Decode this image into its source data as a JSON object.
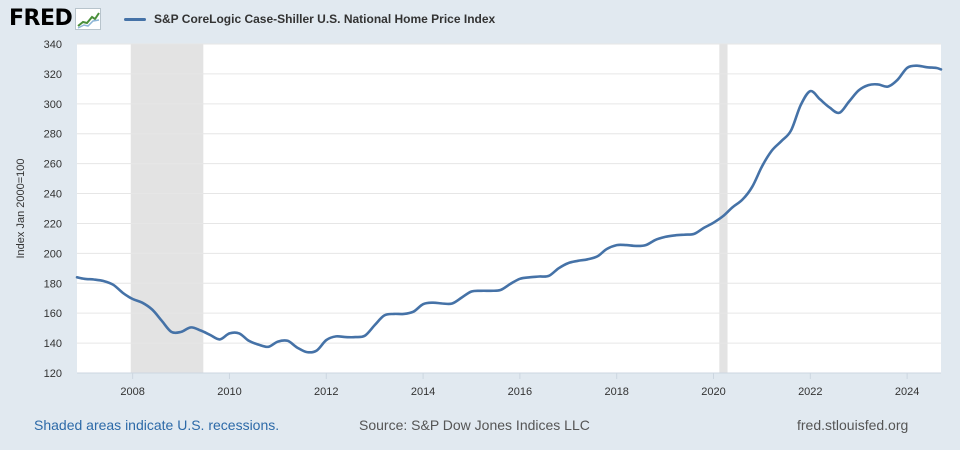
{
  "header": {
    "logo_text": "FRED",
    "legend_label": "S&P CoreLogic Case-Shiller U.S. National Home Price Index"
  },
  "footer": {
    "recession_note": "Shaded areas indicate U.S. recessions.",
    "source": "Source: S&P Dow Jones Indices LLC",
    "site": "fred.stlouisfed.org"
  },
  "colors": {
    "series": "#4572a7",
    "recession": "#e3e3e3",
    "background": "#e1e9f0",
    "plot": "#ffffff",
    "link": "#2d6aa8"
  },
  "chart_data": {
    "type": "line",
    "title": "",
    "xlabel": "",
    "ylabel": "Index Jan 2000=100",
    "xlim": [
      2006.85,
      2024.7
    ],
    "ylim": [
      120,
      340
    ],
    "y_ticks": [
      120,
      140,
      160,
      180,
      200,
      220,
      240,
      260,
      280,
      300,
      320,
      340
    ],
    "x_ticks": [
      2008,
      2010,
      2012,
      2014,
      2016,
      2018,
      2020,
      2022,
      2024
    ],
    "grid": "horizontal",
    "legend": "top-left",
    "recessions": [
      [
        2007.96,
        2009.46
      ],
      [
        2020.12,
        2020.29
      ]
    ],
    "series": [
      {
        "name": "S&P CoreLogic Case-Shiller U.S. National Home Price Index",
        "x": [
          2006.85,
          2007.0,
          2007.2,
          2007.4,
          2007.6,
          2007.8,
          2008.0,
          2008.2,
          2008.4,
          2008.6,
          2008.8,
          2009.0,
          2009.2,
          2009.4,
          2009.6,
          2009.8,
          2010.0,
          2010.2,
          2010.4,
          2010.6,
          2010.8,
          2011.0,
          2011.2,
          2011.4,
          2011.6,
          2011.8,
          2012.0,
          2012.2,
          2012.4,
          2012.6,
          2012.8,
          2013.0,
          2013.2,
          2013.4,
          2013.6,
          2013.8,
          2014.0,
          2014.2,
          2014.4,
          2014.6,
          2014.8,
          2015.0,
          2015.2,
          2015.4,
          2015.6,
          2015.8,
          2016.0,
          2016.2,
          2016.4,
          2016.6,
          2016.8,
          2017.0,
          2017.2,
          2017.4,
          2017.6,
          2017.8,
          2018.0,
          2018.2,
          2018.4,
          2018.6,
          2018.8,
          2019.0,
          2019.2,
          2019.4,
          2019.6,
          2019.8,
          2020.0,
          2020.2,
          2020.4,
          2020.6,
          2020.8,
          2021.0,
          2021.2,
          2021.4,
          2021.6,
          2021.8,
          2022.0,
          2022.2,
          2022.4,
          2022.6,
          2022.8,
          2023.0,
          2023.2,
          2023.4,
          2023.6,
          2023.8,
          2024.0,
          2024.2,
          2024.4,
          2024.6,
          2024.7
        ],
        "values": [
          184,
          183,
          182.5,
          181.5,
          179,
          173.5,
          169.5,
          167,
          162.5,
          155,
          147.5,
          147.5,
          150.5,
          148.5,
          145.5,
          142.5,
          146.5,
          146.5,
          141.5,
          139,
          137.5,
          141,
          141.5,
          137,
          134,
          135,
          142,
          144.5,
          144,
          144,
          145,
          152,
          158.5,
          159.5,
          159.5,
          161,
          166,
          167,
          166.5,
          166.5,
          170.5,
          174.5,
          175,
          175,
          175.5,
          179.5,
          183,
          184,
          184.5,
          185,
          190,
          193.5,
          195,
          196,
          198,
          203,
          205.5,
          205.5,
          205,
          205.5,
          209,
          211,
          212,
          212.5,
          213,
          217,
          220.5,
          225,
          231,
          236,
          244.5,
          258,
          268.5,
          275,
          282,
          299,
          308.5,
          303,
          297.5,
          294,
          301.5,
          309,
          312.5,
          313,
          311.5,
          316,
          324,
          325.5,
          324.5,
          324,
          323
        ]
      }
    ]
  }
}
